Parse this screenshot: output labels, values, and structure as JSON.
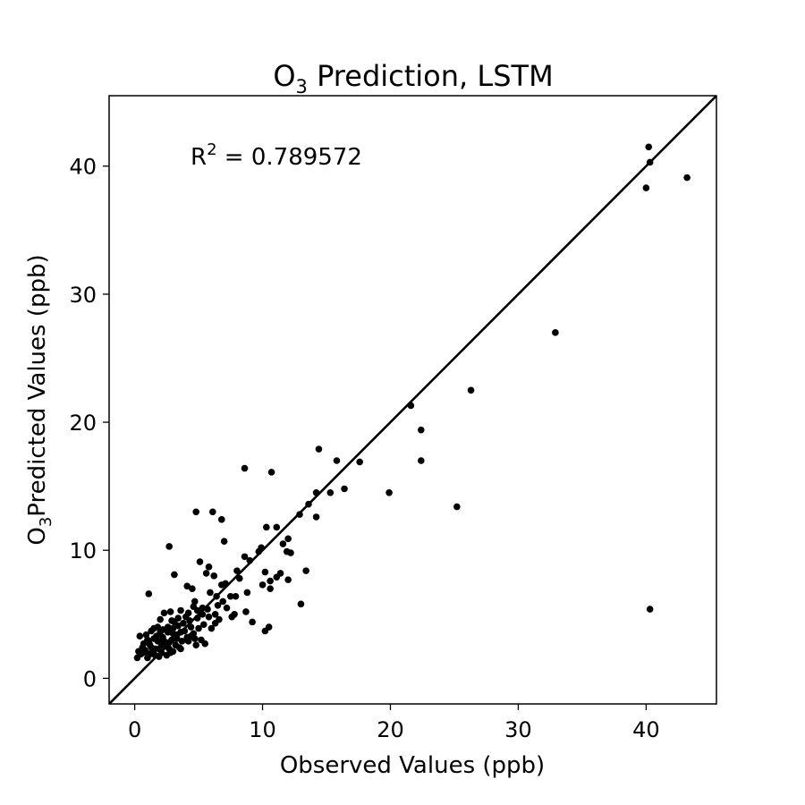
{
  "chart_data": {
    "type": "scatter",
    "title": {
      "prefix": "O",
      "sub": "3",
      "rest": " Prediction, LSTM"
    },
    "xlabel": "Observed Values (ppb)",
    "ylabel": {
      "prefix": "O",
      "sub": "3",
      "rest": "Predicted Values (ppb)"
    },
    "annotation": {
      "base": "R",
      "sup": "2",
      "rest": " = 0.789572"
    },
    "xlim": [
      -2,
      45.5
    ],
    "ylim": [
      -2,
      45.5
    ],
    "xticks": [
      0,
      10,
      20,
      30,
      40
    ],
    "yticks": [
      0,
      10,
      20,
      30,
      40
    ],
    "grid": false,
    "reference_line": {
      "label": "y = x",
      "color": "#000000"
    },
    "marker_color": "#000000",
    "points": [
      [
        40.2,
        41.5
      ],
      [
        40.3,
        40.3
      ],
      [
        40.0,
        38.3
      ],
      [
        43.2,
        39.1
      ],
      [
        32.9,
        27.0
      ],
      [
        26.3,
        22.5
      ],
      [
        21.6,
        21.3
      ],
      [
        22.4,
        19.4
      ],
      [
        22.4,
        17.0
      ],
      [
        25.2,
        13.4
      ],
      [
        19.9,
        14.5
      ],
      [
        40.3,
        5.4
      ],
      [
        17.6,
        16.9
      ],
      [
        15.8,
        17.0
      ],
      [
        14.4,
        17.9
      ],
      [
        16.4,
        14.8
      ],
      [
        15.3,
        14.5
      ],
      [
        14.2,
        14.5
      ],
      [
        14.2,
        12.6
      ],
      [
        13.6,
        13.6
      ],
      [
        12.9,
        12.8
      ],
      [
        13.4,
        8.4
      ],
      [
        13.0,
        5.8
      ],
      [
        12.2,
        9.8
      ],
      [
        12.0,
        10.9
      ],
      [
        11.6,
        10.5
      ],
      [
        11.9,
        9.9
      ],
      [
        11.4,
        8.2
      ],
      [
        11.1,
        11.8
      ],
      [
        11.1,
        7.9
      ],
      [
        12.0,
        7.7
      ],
      [
        10.7,
        16.1
      ],
      [
        8.6,
        16.4
      ],
      [
        10.3,
        11.8
      ],
      [
        10.2,
        8.3
      ],
      [
        10.6,
        7.6
      ],
      [
        10.6,
        7.0
      ],
      [
        9.9,
        10.2
      ],
      [
        9.7,
        9.9
      ],
      [
        9.0,
        9.2
      ],
      [
        8.6,
        9.5
      ],
      [
        10.0,
        7.3
      ],
      [
        10.5,
        4.0
      ],
      [
        10.2,
        3.7
      ],
      [
        8.0,
        8.4
      ],
      [
        8.2,
        7.8
      ],
      [
        7.9,
        6.4
      ],
      [
        8.8,
        6.7
      ],
      [
        7.8,
        5.0
      ],
      [
        8.7,
        5.2
      ],
      [
        9.2,
        4.4
      ],
      [
        7.0,
        10.7
      ],
      [
        6.8,
        12.4
      ],
      [
        6.1,
        13.0
      ],
      [
        4.8,
        13.0
      ],
      [
        2.7,
        10.3
      ],
      [
        5.8,
        8.7
      ],
      [
        5.1,
        9.1
      ],
      [
        3.1,
        8.1
      ],
      [
        4.5,
        7.0
      ],
      [
        4.1,
        7.2
      ],
      [
        5.6,
        8.2
      ],
      [
        6.2,
        8.0
      ],
      [
        7.1,
        7.4
      ],
      [
        6.8,
        7.3
      ],
      [
        7.5,
        6.4
      ],
      [
        6.4,
        6.4
      ],
      [
        5.9,
        6.7
      ],
      [
        4.7,
        6.0
      ],
      [
        6.5,
        5.7
      ],
      [
        7.2,
        5.5
      ],
      [
        6.9,
        6.0
      ],
      [
        6.3,
        5.0
      ],
      [
        5.7,
        5.4
      ],
      [
        5.3,
        5.0
      ],
      [
        4.6,
        5.6
      ],
      [
        4.2,
        5.1
      ],
      [
        3.6,
        5.3
      ],
      [
        2.8,
        5.2
      ],
      [
        2.3,
        5.1
      ],
      [
        1.1,
        6.6
      ],
      [
        2.0,
        4.6
      ],
      [
        1.5,
        3.9
      ],
      [
        0.9,
        3.4
      ],
      [
        0.4,
        3.3
      ],
      [
        0.7,
        2.7
      ],
      [
        1.3,
        2.4
      ],
      [
        1.8,
        2.9
      ],
      [
        2.2,
        3.2
      ],
      [
        2.6,
        3.6
      ],
      [
        3.0,
        3.9
      ],
      [
        3.4,
        4.1
      ],
      [
        3.8,
        4.3
      ],
      [
        4.3,
        4.5
      ],
      [
        4.9,
        4.7
      ],
      [
        5.4,
        4.2
      ],
      [
        5.0,
        3.9
      ],
      [
        4.6,
        3.5
      ],
      [
        4.1,
        3.2
      ],
      [
        3.7,
        2.9
      ],
      [
        3.2,
        2.6
      ],
      [
        2.7,
        2.3
      ],
      [
        2.1,
        2.0
      ],
      [
        1.6,
        1.8
      ],
      [
        1.0,
        1.6
      ],
      [
        0.2,
        1.6
      ],
      [
        0.5,
        1.9
      ],
      [
        0.8,
        2.2
      ],
      [
        1.2,
        2.6
      ],
      [
        1.7,
        3.3
      ],
      [
        2.4,
        2.7
      ],
      [
        2.9,
        3.0
      ],
      [
        3.3,
        3.4
      ],
      [
        3.9,
        3.7
      ],
      [
        4.4,
        4.0
      ],
      [
        2.5,
        1.8
      ],
      [
        3.0,
        2.1
      ],
      [
        3.5,
        2.4
      ],
      [
        1.4,
        2.0
      ],
      [
        1.9,
        2.3
      ],
      [
        2.3,
        2.9
      ],
      [
        2.0,
        3.6
      ],
      [
        1.5,
        3.1
      ],
      [
        1.1,
        2.8
      ],
      [
        0.6,
        2.4
      ],
      [
        5.5,
        2.7
      ],
      [
        5.2,
        3.0
      ],
      [
        4.7,
        3.1
      ],
      [
        4.4,
        3.3
      ],
      [
        3.6,
        3.6
      ],
      [
        3.1,
        4.4
      ],
      [
        2.6,
        4.0
      ],
      [
        2.2,
        3.8
      ],
      [
        1.8,
        4.0
      ],
      [
        1.3,
        3.7
      ],
      [
        6.0,
        3.9
      ],
      [
        5.8,
        4.8
      ],
      [
        5.3,
        5.5
      ],
      [
        4.9,
        5.3
      ],
      [
        4.0,
        4.8
      ],
      [
        3.4,
        4.7
      ],
      [
        2.9,
        4.5
      ],
      [
        6.6,
        4.6
      ],
      [
        7.6,
        4.8
      ],
      [
        6.3,
        4.3
      ],
      [
        2.4,
        2.5
      ],
      [
        1.9,
        1.7
      ],
      [
        2.8,
        2.0
      ],
      [
        3.6,
        2.3
      ],
      [
        1.2,
        1.9
      ],
      [
        4.2,
        2.9
      ],
      [
        4.8,
        2.6
      ],
      [
        3.3,
        3.1
      ],
      [
        2.7,
        2.8
      ],
      [
        1.6,
        2.3
      ],
      [
        0.9,
        2.0
      ],
      [
        0.3,
        2.1
      ],
      [
        1.0,
        3.0
      ],
      [
        2.1,
        2.6
      ],
      [
        3.0,
        3.5
      ]
    ]
  }
}
